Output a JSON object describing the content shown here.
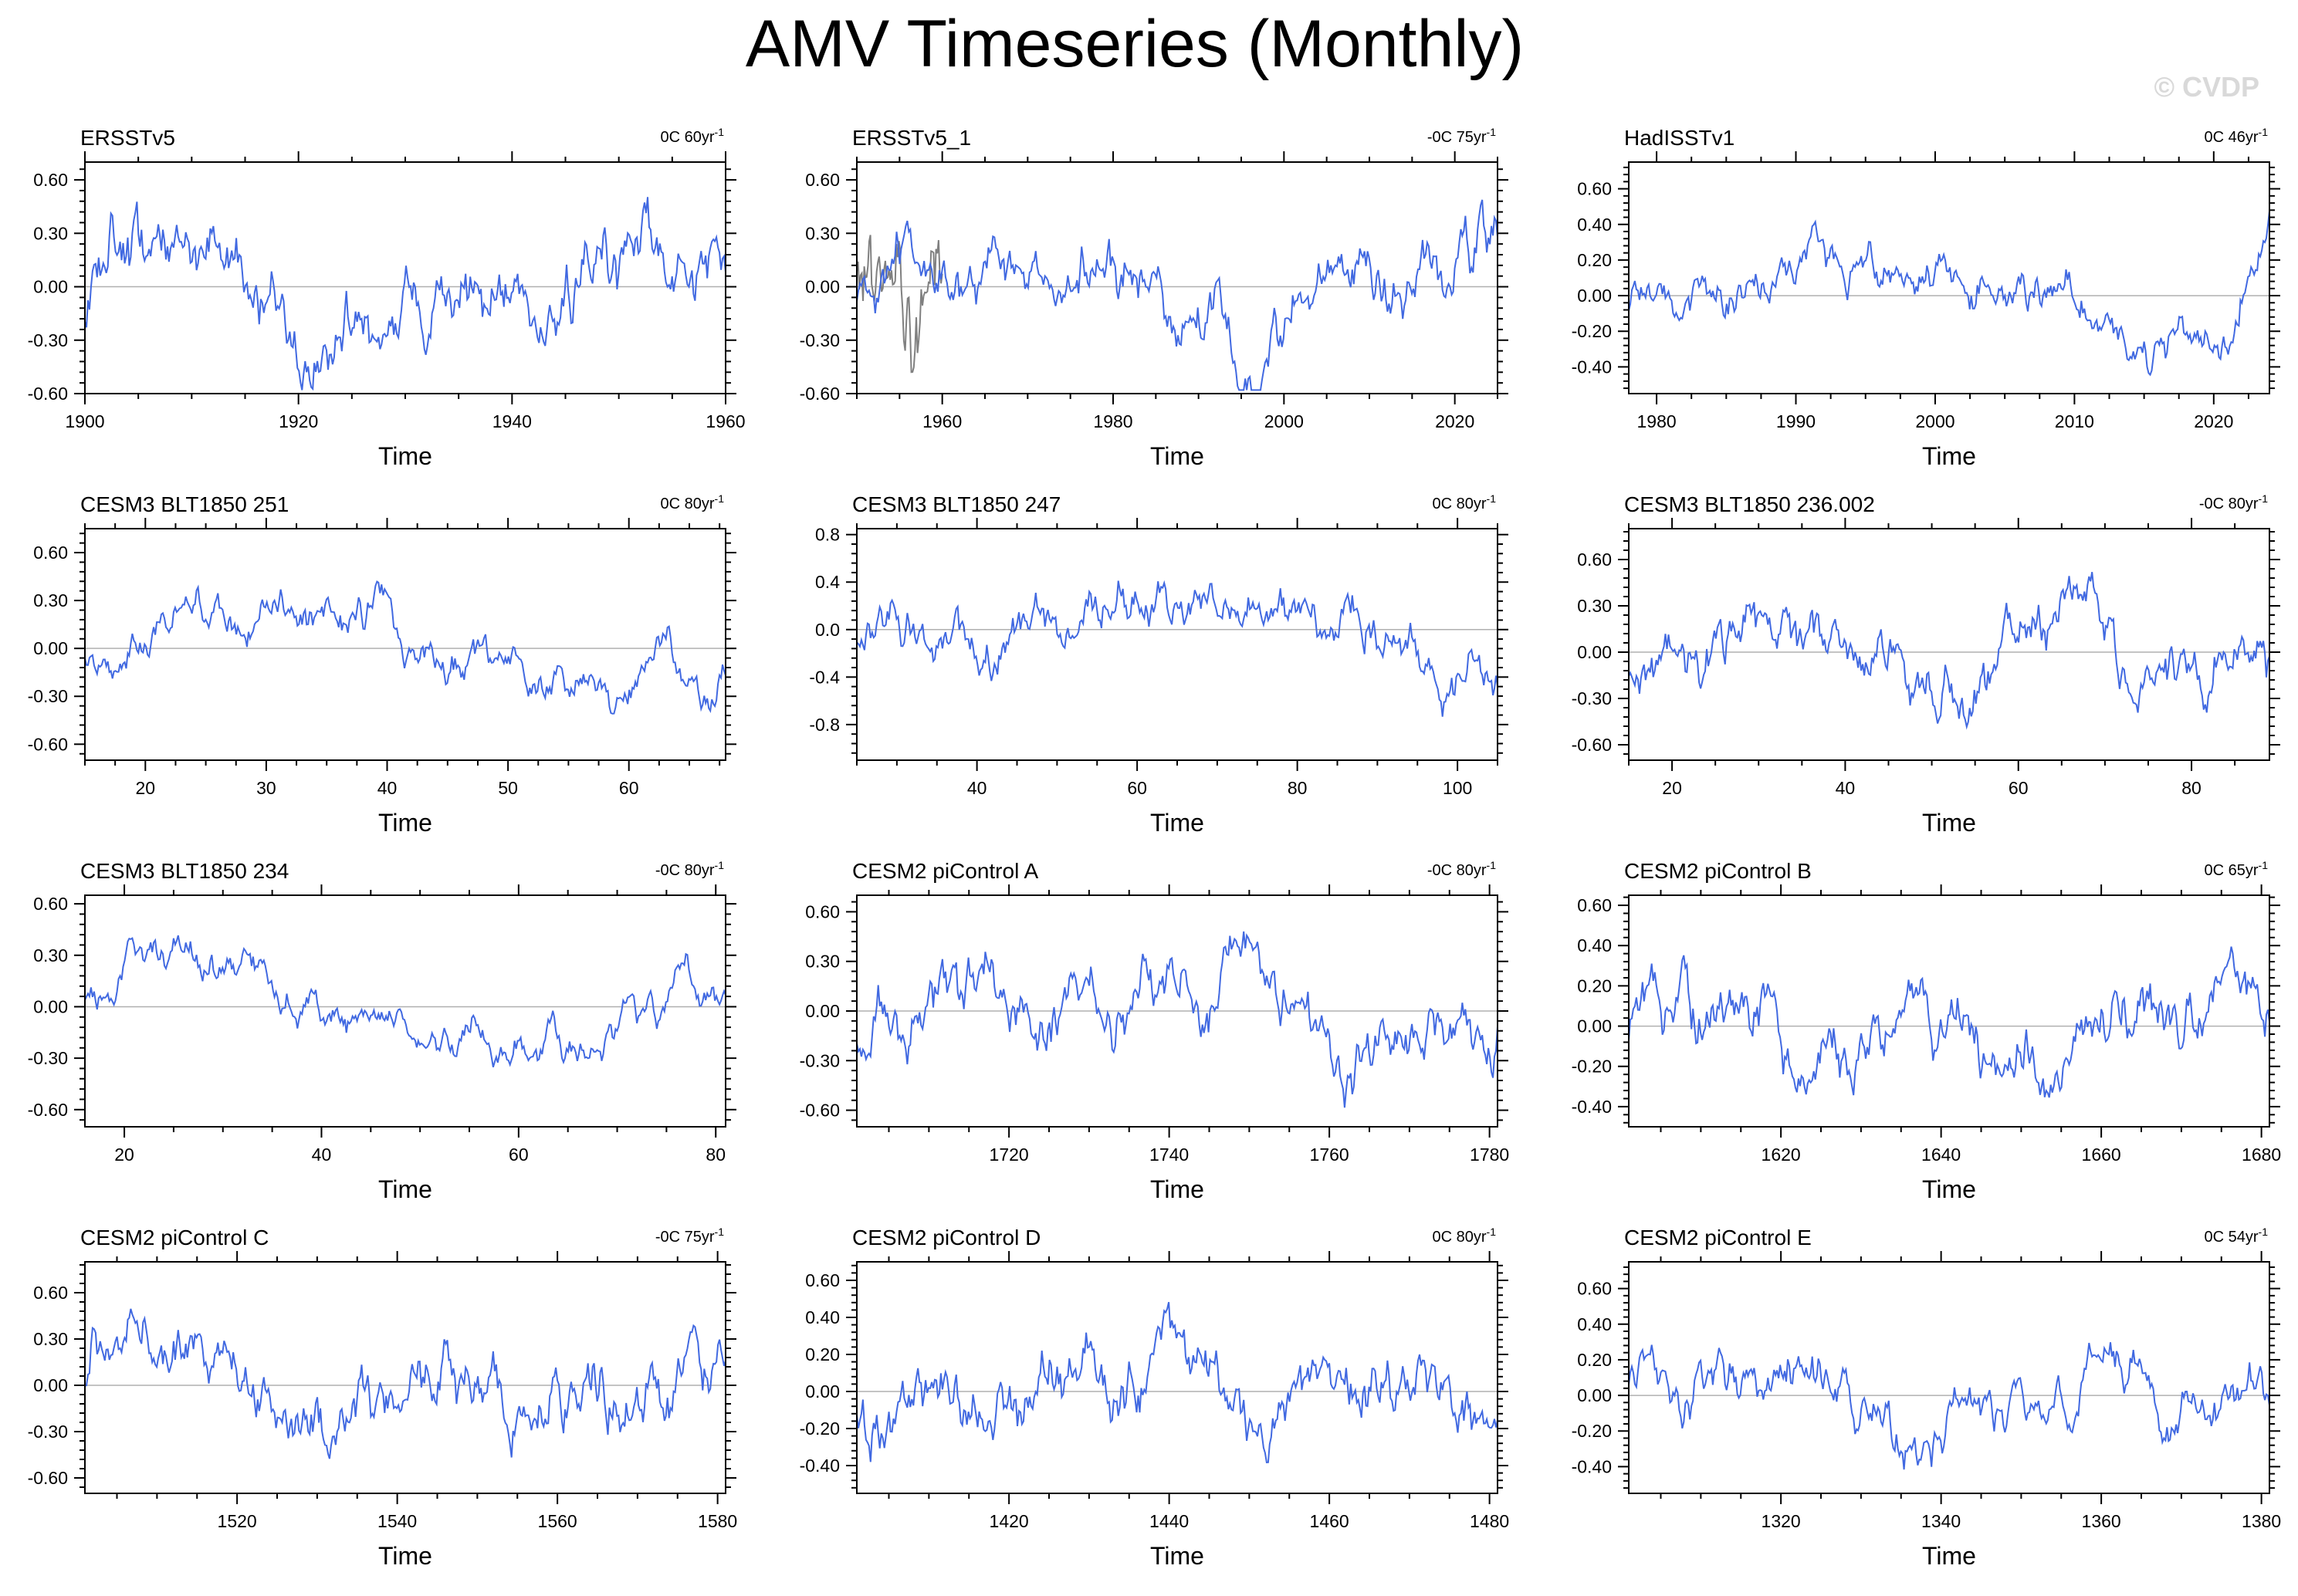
{
  "page": {
    "title": "AMV Timeseries (Monthly)",
    "watermark": "© CVDP"
  },
  "style": {
    "line_color": "#4169e1",
    "obs_alt_line_color": "#808080",
    "zero_line_color": "#b0b0b0",
    "frame_color": "#000000"
  },
  "chart_data": [
    {
      "type": "line",
      "title": "ERSSTv5",
      "trend": "0C 60yr",
      "xlabel": "Time",
      "xlim": [
        1900,
        1960
      ],
      "ylim": [
        -0.6,
        0.7
      ],
      "xticks": [
        1900,
        1920,
        1940,
        1960
      ],
      "yticks": [
        -0.6,
        -0.3,
        0.0,
        0.3,
        0.6
      ],
      "ytick_labels": [
        "-0.60",
        "-0.30",
        "0.00",
        "0.30",
        "0.60"
      ],
      "seed": 11,
      "amplitude": 0.22
    },
    {
      "type": "line",
      "title": "ERSSTv5_1",
      "trend": "-0C 75yr",
      "xlabel": "Time",
      "xlim": [
        1950,
        2025
      ],
      "ylim": [
        -0.6,
        0.7
      ],
      "xticks": [
        1960,
        1980,
        2000,
        2020
      ],
      "yticks": [
        -0.6,
        -0.3,
        0.0,
        0.3,
        0.6
      ],
      "ytick_labels": [
        "-0.60",
        "-0.30",
        "0.00",
        "0.30",
        "0.60"
      ],
      "seed": 23,
      "amplitude": 0.2,
      "alt_series_xlim": [
        1950,
        1960
      ]
    },
    {
      "type": "line",
      "title": "HadISSTv1",
      "trend": "0C 46yr",
      "xlabel": "Time",
      "xlim": [
        1978,
        2024
      ],
      "ylim": [
        -0.55,
        0.75
      ],
      "xticks": [
        1980,
        1990,
        2000,
        2010,
        2020
      ],
      "yticks": [
        -0.4,
        -0.2,
        0.0,
        0.2,
        0.4,
        0.6
      ],
      "ytick_labels": [
        "-0.40",
        "-0.20",
        "0.00",
        "0.20",
        "0.40",
        "0.60"
      ],
      "seed": 37,
      "amplitude": 0.17
    },
    {
      "type": "line",
      "title": "CESM3 BLT1850 251",
      "trend": "0C 80yr",
      "xlabel": "Time",
      "xlim": [
        15,
        68
      ],
      "ylim": [
        -0.7,
        0.75
      ],
      "xticks": [
        20,
        30,
        40,
        50,
        60
      ],
      "yticks": [
        -0.6,
        -0.3,
        0.0,
        0.3,
        0.6
      ],
      "ytick_labels": [
        "-0.60",
        "-0.30",
        "0.00",
        "0.30",
        "0.60"
      ],
      "seed": 41,
      "amplitude": 0.2
    },
    {
      "type": "line",
      "title": "CESM3 BLT1850 247",
      "trend": "0C 80yr",
      "xlabel": "Time",
      "xlim": [
        25,
        105
      ],
      "ylim": [
        -1.1,
        0.85
      ],
      "xticks": [
        40,
        60,
        80,
        100
      ],
      "yticks": [
        -0.8,
        -0.4,
        0.0,
        0.4,
        0.8
      ],
      "ytick_labels": [
        "-0.8",
        "-0.4",
        "0.0",
        "0.4",
        "0.8"
      ],
      "seed": 53,
      "amplitude": 0.22
    },
    {
      "type": "line",
      "title": "CESM3 BLT1850 236.002",
      "trend": "-0C 80yr",
      "xlabel": "Time",
      "xlim": [
        15,
        89
      ],
      "ylim": [
        -0.7,
        0.8
      ],
      "xticks": [
        20,
        40,
        60,
        80
      ],
      "yticks": [
        -0.6,
        -0.3,
        0.0,
        0.3,
        0.6
      ],
      "ytick_labels": [
        "-0.60",
        "-0.30",
        "0.00",
        "0.30",
        "0.60"
      ],
      "seed": 67,
      "amplitude": 0.2
    },
    {
      "type": "line",
      "title": "CESM3 BLT1850 234",
      "trend": "-0C 80yr",
      "xlabel": "Time",
      "xlim": [
        16,
        81
      ],
      "ylim": [
        -0.7,
        0.65
      ],
      "xticks": [
        20,
        40,
        60,
        80
      ],
      "yticks": [
        -0.6,
        -0.3,
        0.0,
        0.3,
        0.6
      ],
      "ytick_labels": [
        "-0.60",
        "-0.30",
        "0.00",
        "0.30",
        "0.60"
      ],
      "seed": 71,
      "amplitude": 0.2
    },
    {
      "type": "line",
      "title": "CESM2 piControl A",
      "trend": "-0C 80yr",
      "xlabel": "Time",
      "xlim": [
        1701,
        1781
      ],
      "ylim": [
        -0.7,
        0.7
      ],
      "xticks": [
        1720,
        1740,
        1760,
        1780
      ],
      "yticks": [
        -0.6,
        -0.3,
        0.0,
        0.3,
        0.6
      ],
      "ytick_labels": [
        "-0.60",
        "-0.30",
        "0.00",
        "0.30",
        "0.60"
      ],
      "seed": 83,
      "amplitude": 0.2
    },
    {
      "type": "line",
      "title": "CESM2 piControl B",
      "trend": "0C 65yr",
      "xlabel": "Time",
      "xlim": [
        1601,
        1681
      ],
      "ylim": [
        -0.5,
        0.65
      ],
      "xticks": [
        1620,
        1640,
        1660,
        1680
      ],
      "yticks": [
        -0.4,
        -0.2,
        0.0,
        0.2,
        0.4,
        0.6
      ],
      "ytick_labels": [
        "-0.40",
        "-0.20",
        "0.00",
        "0.20",
        "0.40",
        "0.60"
      ],
      "seed": 97,
      "amplitude": 0.16
    },
    {
      "type": "line",
      "title": "CESM2 piControl C",
      "trend": "-0C 75yr",
      "xlabel": "Time",
      "xlim": [
        1501,
        1581
      ],
      "ylim": [
        -0.7,
        0.8
      ],
      "xticks": [
        1520,
        1540,
        1560,
        1580
      ],
      "yticks": [
        -0.6,
        -0.3,
        0.0,
        0.3,
        0.6
      ],
      "ytick_labels": [
        "-0.60",
        "-0.30",
        "0.00",
        "0.30",
        "0.60"
      ],
      "seed": 101,
      "amplitude": 0.2
    },
    {
      "type": "line",
      "title": "CESM2 piControl D",
      "trend": "0C 80yr",
      "xlabel": "Time",
      "xlim": [
        1401,
        1481
      ],
      "ylim": [
        -0.55,
        0.7
      ],
      "xticks": [
        1420,
        1440,
        1460,
        1480
      ],
      "yticks": [
        -0.4,
        -0.2,
        0.0,
        0.2,
        0.4,
        0.6
      ],
      "ytick_labels": [
        "-0.40",
        "-0.20",
        "0.00",
        "0.20",
        "0.40",
        "0.60"
      ],
      "seed": 113,
      "amplitude": 0.15
    },
    {
      "type": "line",
      "title": "CESM2 piControl E",
      "trend": "0C 54yr",
      "xlabel": "Time",
      "xlim": [
        1301,
        1381
      ],
      "ylim": [
        -0.55,
        0.75
      ],
      "xticks": [
        1320,
        1340,
        1360,
        1380
      ],
      "yticks": [
        -0.4,
        -0.2,
        0.0,
        0.2,
        0.4,
        0.6
      ],
      "ytick_labels": [
        "-0.40",
        "-0.20",
        "0.00",
        "0.20",
        "0.40",
        "0.60"
      ],
      "seed": 127,
      "amplitude": 0.15
    }
  ]
}
